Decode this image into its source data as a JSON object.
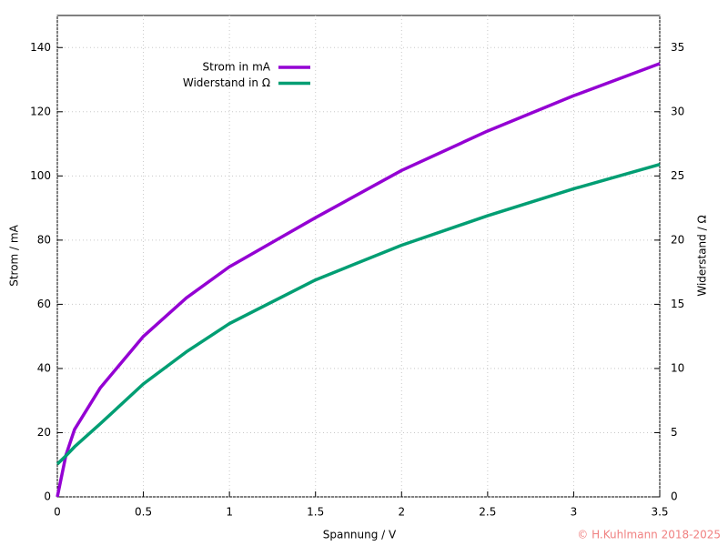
{
  "chart_data": {
    "type": "line",
    "x_label": "Spannung / V",
    "y_label": "Strom / mA",
    "y2_label": "Widerstand / Ω",
    "x": [
      0,
      0.05,
      0.1,
      0.25,
      0.5,
      0.75,
      1,
      1.5,
      2,
      2.5,
      3,
      3.5
    ],
    "series": [
      {
        "name": "Strom in mA",
        "color": "#9400d3",
        "values": [
          0,
          13,
          21,
          34,
          50,
          62,
          71.7,
          87,
          101.7,
          114,
          125,
          135
        ]
      },
      {
        "name": "Widerstand in Ω",
        "color": "#009e73",
        "axis": "y2",
        "values": [
          2.55,
          3.2,
          3.9,
          5.7,
          8.8,
          11.3,
          13.5,
          16.9,
          19.6,
          21.9,
          24.0,
          25.9
        ]
      }
    ],
    "xlim": [
      0,
      3.5
    ],
    "xticks": [
      0,
      0.5,
      1,
      1.5,
      2,
      2.5,
      3,
      3.5
    ],
    "ylim": [
      0,
      150
    ],
    "yticks": [
      0,
      20,
      40,
      60,
      80,
      100,
      120,
      140
    ],
    "y2lim": [
      0,
      37.5
    ],
    "y2ticks": [
      0,
      5,
      10,
      15,
      20,
      25,
      30,
      35
    ],
    "grid": true,
    "legend": "upper-left",
    "copyright": "© H.Kuhlmann 2018-2025"
  }
}
